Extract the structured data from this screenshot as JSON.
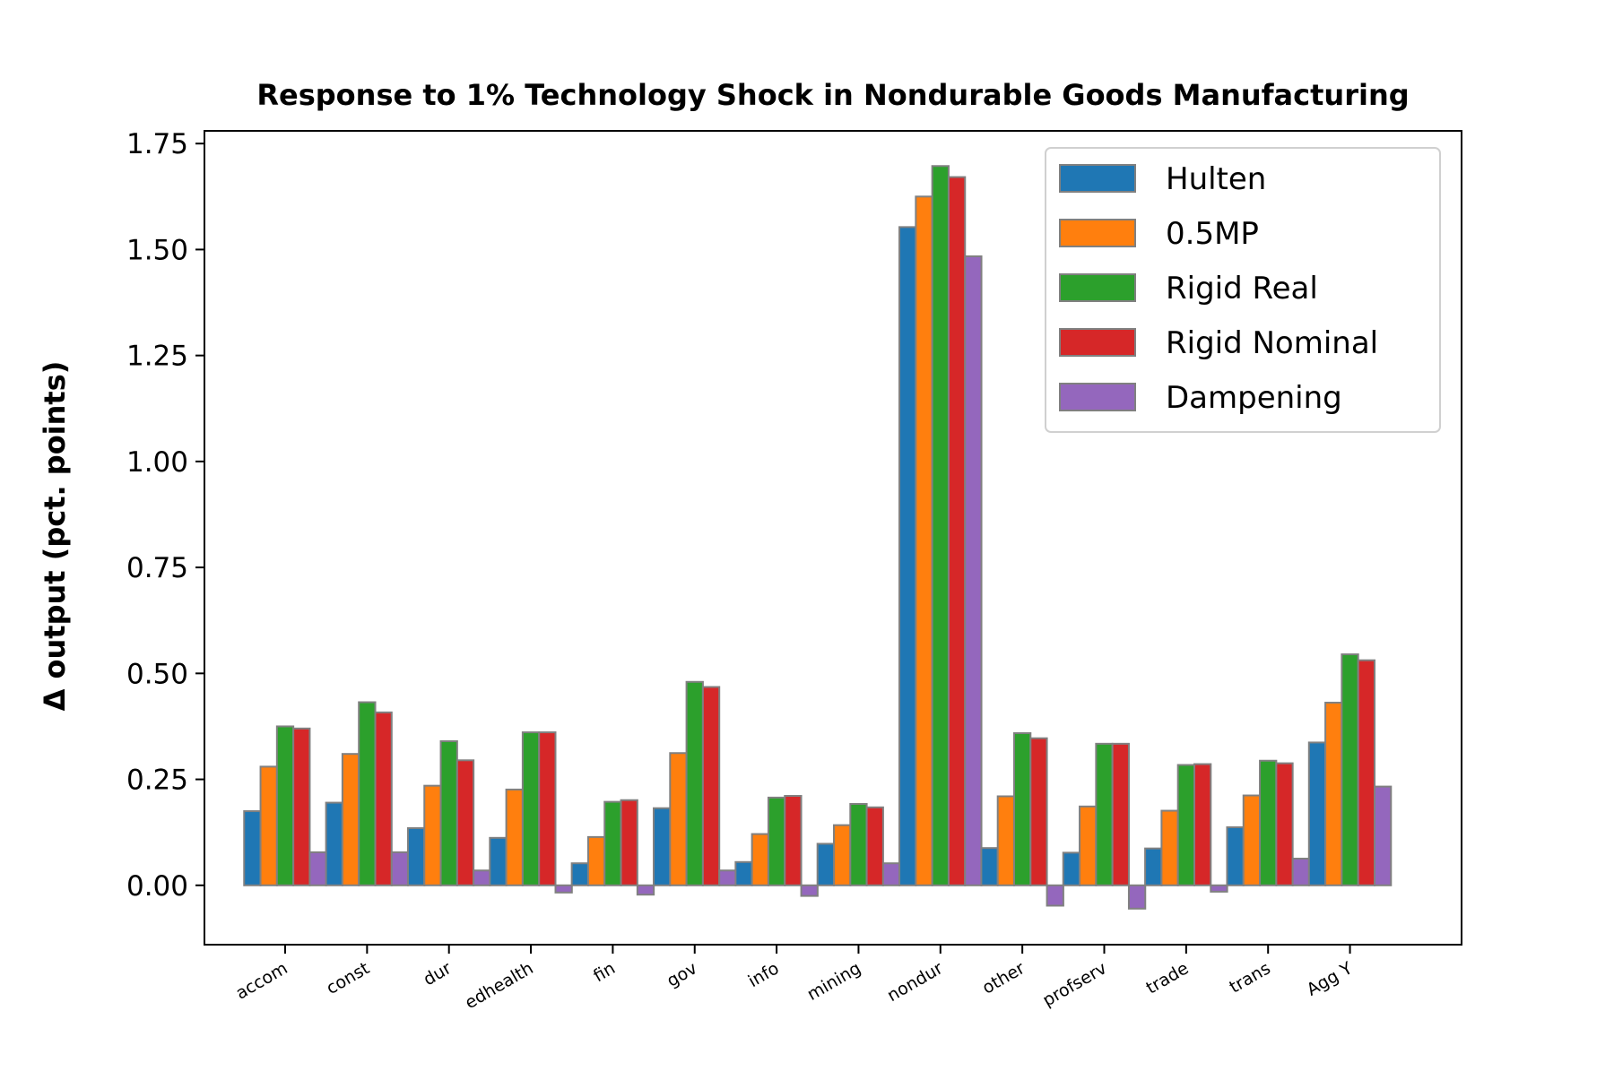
{
  "chart_data": {
    "type": "bar",
    "title": "Response to 1% Technology Shock in Nondurable Goods Manufacturing",
    "xlabel": "",
    "ylabel": "Δ output (pct. points)",
    "ylim": [
      -0.14,
      1.78
    ],
    "yticks": [
      "0.00",
      "0.25",
      "0.50",
      "0.75",
      "1.00",
      "1.25",
      "1.50",
      "1.75"
    ],
    "categories": [
      "accom",
      "const",
      "dur",
      "edhealth",
      "fin",
      "gov",
      "info",
      "mining",
      "nondur",
      "other",
      "profserv",
      "trade",
      "trans",
      "Agg Y"
    ],
    "series": [
      {
        "name": "Hulten",
        "color": "#1f77b4",
        "values": [
          0.175,
          0.195,
          0.135,
          0.112,
          0.052,
          0.182,
          0.055,
          0.098,
          1.553,
          0.088,
          0.077,
          0.087,
          0.137,
          0.337
        ]
      },
      {
        "name": "0.5MP",
        "color": "#ff7f0e",
        "values": [
          0.28,
          0.31,
          0.235,
          0.226,
          0.114,
          0.312,
          0.121,
          0.142,
          1.625,
          0.21,
          0.186,
          0.176,
          0.212,
          0.431
        ]
      },
      {
        "name": "Rigid Real",
        "color": "#2ca02c",
        "values": [
          0.375,
          0.432,
          0.34,
          0.361,
          0.197,
          0.48,
          0.207,
          0.192,
          1.697,
          0.359,
          0.334,
          0.284,
          0.294,
          0.545
        ]
      },
      {
        "name": "Rigid Nominal",
        "color": "#d62728",
        "values": [
          0.37,
          0.408,
          0.295,
          0.361,
          0.201,
          0.468,
          0.211,
          0.184,
          1.671,
          0.347,
          0.334,
          0.286,
          0.288,
          0.531
        ]
      },
      {
        "name": "Dampening",
        "color": "#9467bd",
        "values": [
          0.078,
          0.078,
          0.035,
          -0.017,
          -0.022,
          0.035,
          -0.025,
          0.052,
          1.484,
          -0.048,
          -0.055,
          -0.015,
          0.063,
          0.233
        ]
      }
    ],
    "grid": false,
    "legend": "top-right"
  }
}
